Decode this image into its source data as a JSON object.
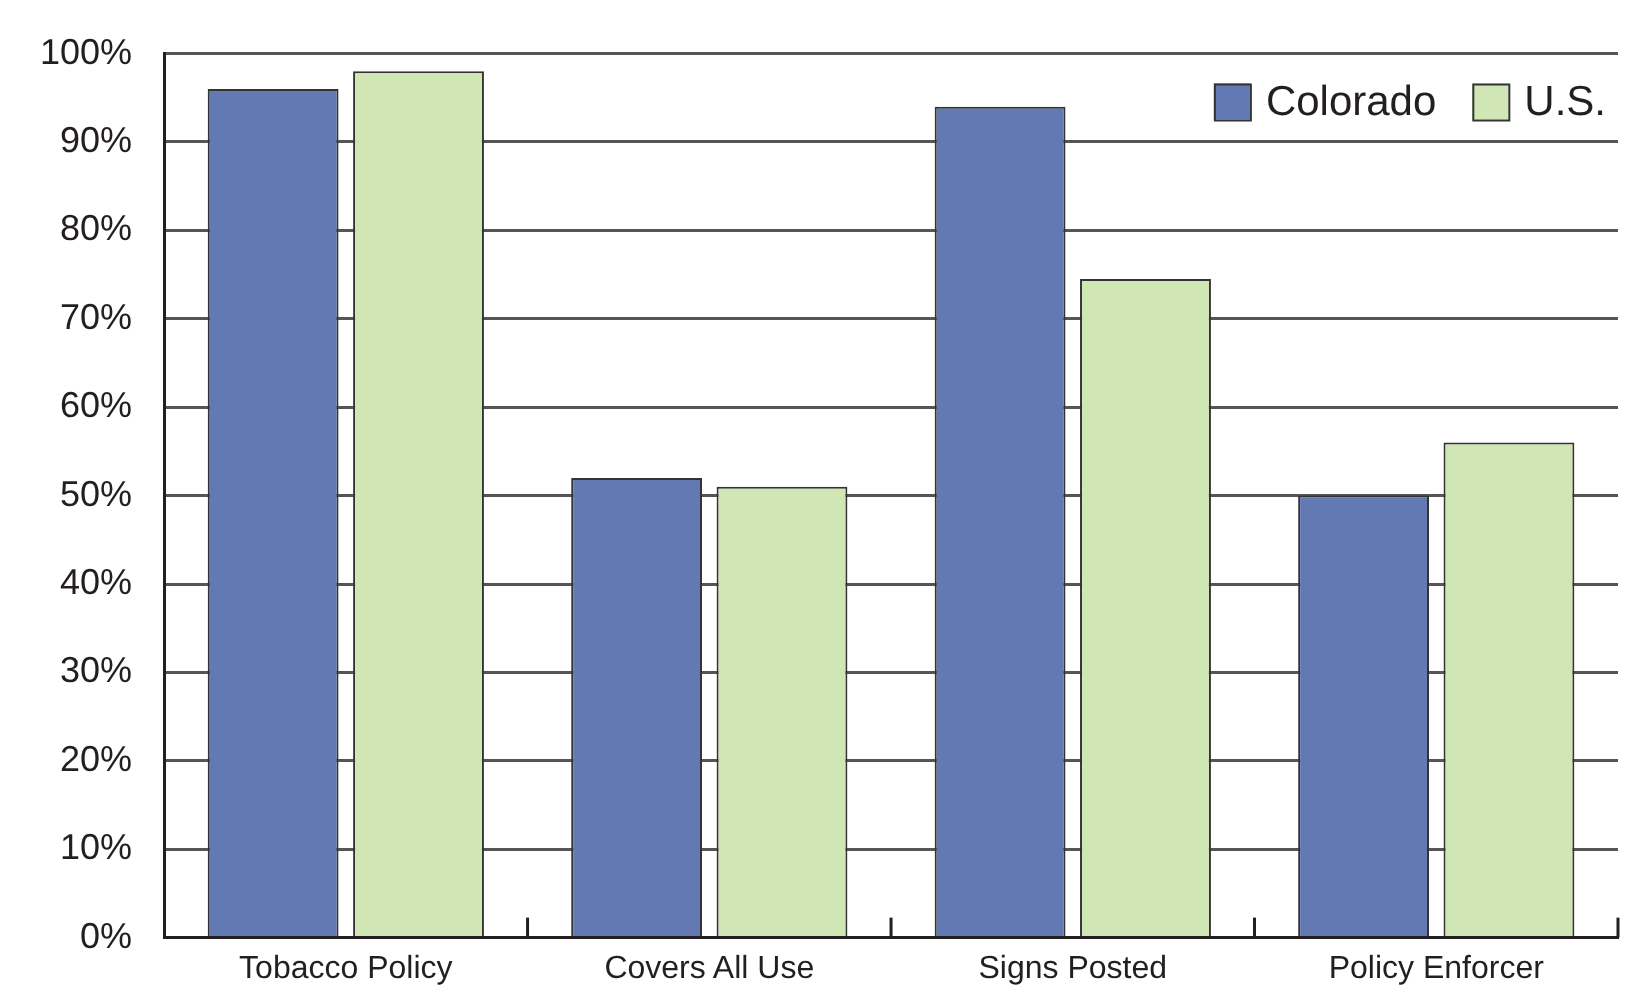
{
  "chart_data": {
    "type": "bar",
    "categories": [
      "Tobacco Policy",
      "Covers All Use",
      "Signs Posted",
      "Policy Enforcer"
    ],
    "series": [
      {
        "name": "Colorado",
        "color": "#6379b3",
        "values": [
          96,
          52,
          94,
          50
        ]
      },
      {
        "name": "U.S.",
        "color": "#d1e6b5",
        "values": [
          98,
          51,
          74.5,
          56
        ]
      }
    ],
    "ylim": [
      0,
      100
    ],
    "yticks": [
      {
        "value": 0,
        "label": "0%"
      },
      {
        "value": 10,
        "label": "10%"
      },
      {
        "value": 20,
        "label": "20%"
      },
      {
        "value": 30,
        "label": "30%"
      },
      {
        "value": 40,
        "label": "40%"
      },
      {
        "value": 50,
        "label": "50%"
      },
      {
        "value": 60,
        "label": "60%"
      },
      {
        "value": 70,
        "label": "70%"
      },
      {
        "value": 80,
        "label": "80%"
      },
      {
        "value": 90,
        "label": "90%"
      },
      {
        "value": 100,
        "label": "100%"
      }
    ],
    "grid": "y",
    "legend": "top right"
  }
}
